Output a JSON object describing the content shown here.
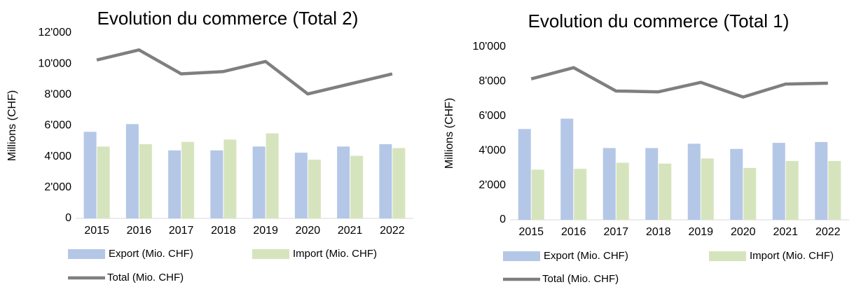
{
  "chart_data": [
    {
      "type": "bar",
      "title": "Evolution du commerce (Total 2)",
      "y_label": "Millions (CHF)",
      "categories": [
        "2015",
        "2016",
        "2017",
        "2018",
        "2019",
        "2020",
        "2021",
        "2022"
      ],
      "series": [
        {
          "name": "Export (Mio. CHF)",
          "color": "#b4c7e7",
          "type": "bar",
          "values": [
            5600,
            6100,
            4400,
            4400,
            4650,
            4250,
            4650,
            4800
          ]
        },
        {
          "name": "Import (Mio. CHF)",
          "color": "#d6e4bd",
          "type": "bar",
          "values": [
            4650,
            4800,
            4950,
            5100,
            5500,
            3800,
            4050,
            4550
          ]
        },
        {
          "name": "Total (Mio. CHF)",
          "color": "#7f7f7f",
          "type": "line",
          "values": [
            10250,
            10900,
            9350,
            9500,
            10150,
            8050,
            8700,
            9350
          ]
        }
      ],
      "ylim": [
        0,
        12000
      ],
      "yticks": [
        0,
        {
          "value": 2000,
          "label": "2'000"
        },
        {
          "value": 4000,
          "label": "4'000"
        },
        {
          "value": 6000,
          "label": "6'000"
        },
        {
          "value": 8000,
          "label": "8'000"
        },
        {
          "value": 10000,
          "label": "10'000"
        },
        {
          "value": 12000,
          "label": "12'000"
        }
      ],
      "grid": false,
      "legend": "bottom"
    },
    {
      "type": "bar",
      "title": "Evolution du commerce (Total 1)",
      "y_label": "Millions (CHF)",
      "categories": [
        "2015",
        "2016",
        "2017",
        "2018",
        "2019",
        "2020",
        "2021",
        "2022"
      ],
      "series": [
        {
          "name": "Export (Mio. CHF)",
          "color": "#b4c7e7",
          "type": "bar",
          "values": [
            5250,
            5850,
            4150,
            4150,
            4400,
            4100,
            4450,
            4500
          ]
        },
        {
          "name": "Import (Mio. CHF)",
          "color": "#d6e4bd",
          "type": "bar",
          "values": [
            2900,
            2950,
            3300,
            3250,
            3550,
            3000,
            3400,
            3400
          ]
        },
        {
          "name": "Total (Mio. CHF)",
          "color": "#7f7f7f",
          "type": "line",
          "values": [
            8150,
            8800,
            7450,
            7400,
            7950,
            7100,
            7850,
            7900
          ]
        }
      ],
      "ylim": [
        0,
        10000
      ],
      "yticks": [
        0,
        {
          "value": 2000,
          "label": "2'000"
        },
        {
          "value": 4000,
          "label": "4'000"
        },
        {
          "value": 6000,
          "label": "6'000"
        },
        {
          "value": 8000,
          "label": "8'000"
        },
        {
          "value": 10000,
          "label": "10'000"
        }
      ],
      "grid": false,
      "legend": "bottom"
    }
  ]
}
